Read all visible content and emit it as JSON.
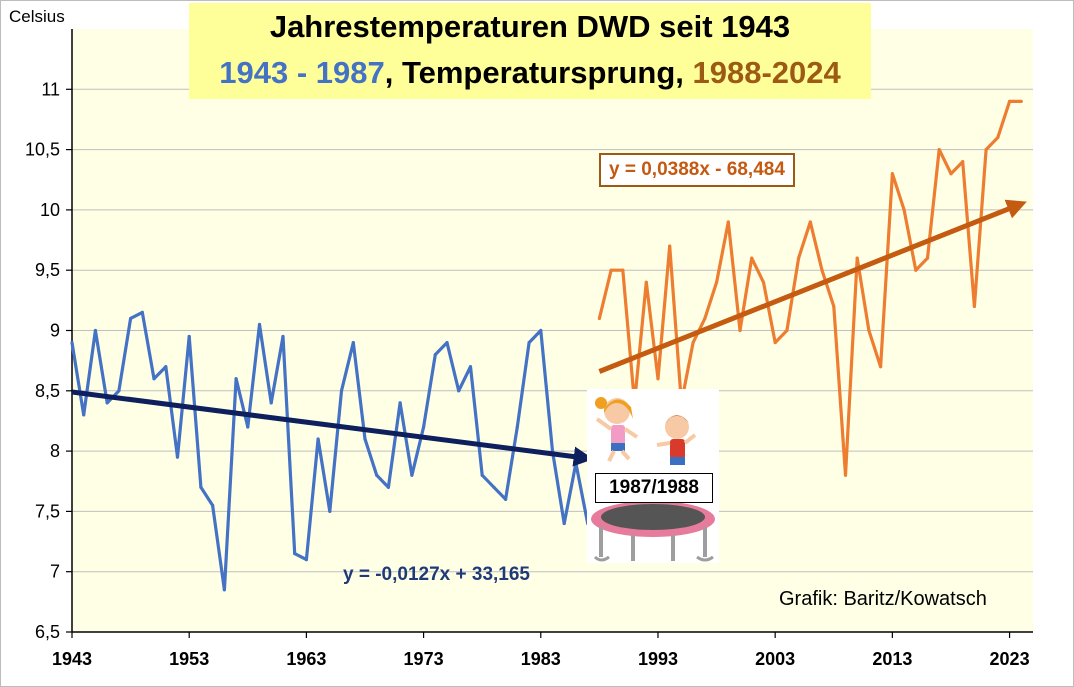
{
  "header": {
    "title": "Jahrestemperaturen DWD seit 1943",
    "subtitle_part1": "1943 - 1987",
    "subtitle_part2": ", Temperatursprung, ",
    "subtitle_part3": "1988-2024"
  },
  "annotations": {
    "unit": "Celsius",
    "credit": "Grafik: Baritz/Kowatsch",
    "eq_first": "y = -0,0127x + 33,165",
    "eq_second": "y = 0,0388x - 68,484",
    "jump_label": "1987/1988"
  },
  "colors": {
    "first_period": "#4472c4",
    "second_period": "#ed7d31",
    "first_trend": "#0d1f5c",
    "second_trend": "#c55a11",
    "plot_background": "#ffffe6",
    "title_background": "#ffff99"
  },
  "icons": [
    "girl-jumping-icon",
    "boy-jumping-icon",
    "trampoline-icon"
  ],
  "chart_data": {
    "type": "line",
    "title": "Jahrestemperaturen DWD seit 1943",
    "ylabel": "Celsius",
    "xlim": [
      1943,
      2025
    ],
    "ylim": [
      6.5,
      11.5
    ],
    "x_ticks": [
      1943,
      1953,
      1963,
      1973,
      1983,
      1993,
      2003,
      2013,
      2023
    ],
    "y_ticks": [
      "6,5",
      "7",
      "7,5",
      "8",
      "8,5",
      "9",
      "9,5",
      "10",
      "10,5",
      "11"
    ],
    "grid": "horizontal",
    "series": [
      {
        "period": "1943-1987",
        "x": [
          1943,
          1944,
          1945,
          1946,
          1947,
          1948,
          1949,
          1950,
          1951,
          1952,
          1953,
          1954,
          1955,
          1956,
          1957,
          1958,
          1959,
          1960,
          1961,
          1962,
          1963,
          1964,
          1965,
          1966,
          1967,
          1968,
          1969,
          1970,
          1971,
          1972,
          1973,
          1974,
          1975,
          1976,
          1977,
          1978,
          1979,
          1980,
          1981,
          1982,
          1983,
          1984,
          1985,
          1986,
          1987
        ],
        "y": [
          8.9,
          8.3,
          9.0,
          8.4,
          8.5,
          9.1,
          9.15,
          8.6,
          8.7,
          7.95,
          8.95,
          7.7,
          7.55,
          6.85,
          8.6,
          8.2,
          9.05,
          8.4,
          8.95,
          7.15,
          7.1,
          8.1,
          7.5,
          8.5,
          8.9,
          8.1,
          7.8,
          7.7,
          8.4,
          7.8,
          8.2,
          8.8,
          8.9,
          8.5,
          8.7,
          7.8,
          7.7,
          7.6,
          8.2,
          8.9,
          9.0,
          8.0,
          7.4,
          7.9,
          7.4
        ],
        "trend": {
          "x": [
            1943,
            1987
          ],
          "y": [
            8.49,
            7.94
          ]
        }
      },
      {
        "period": "1988-2024",
        "x": [
          1988,
          1989,
          1990,
          1991,
          1992,
          1993,
          1994,
          1995,
          1996,
          1997,
          1998,
          1999,
          2000,
          2001,
          2002,
          2003,
          2004,
          2005,
          2006,
          2007,
          2008,
          2009,
          2010,
          2011,
          2012,
          2013,
          2014,
          2015,
          2016,
          2017,
          2018,
          2019,
          2020,
          2021,
          2022,
          2023,
          2024
        ],
        "y": [
          9.1,
          9.5,
          9.5,
          8.4,
          9.4,
          8.6,
          9.7,
          8.4,
          8.9,
          9.1,
          9.4,
          9.9,
          9.0,
          9.6,
          9.4,
          8.9,
          9.0,
          9.6,
          9.9,
          9.5,
          9.2,
          7.8,
          9.6,
          9.0,
          8.7,
          10.3,
          10.0,
          9.5,
          9.6,
          10.5,
          10.3,
          10.4,
          9.2,
          10.5,
          10.6,
          10.9,
          10.9
        ],
        "trend": {
          "x": [
            1988,
            2024
          ],
          "y": [
            8.66,
            10.05
          ]
        }
      }
    ]
  }
}
